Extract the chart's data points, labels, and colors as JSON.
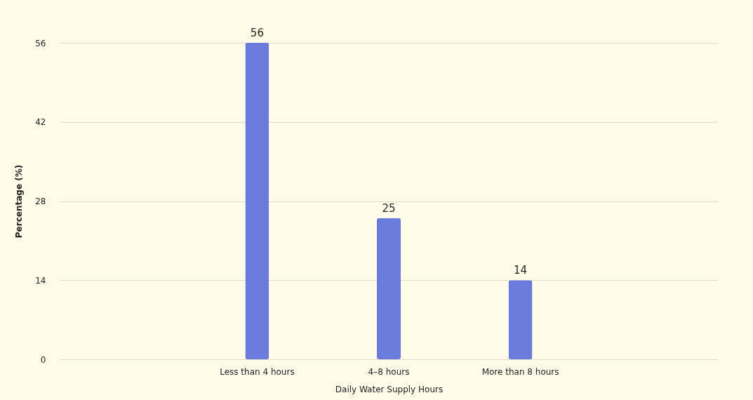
{
  "chart_data": {
    "type": "bar",
    "xlabel": "Daily Water Supply Hours",
    "ylabel": "Percentage (%)",
    "categories": [
      "Less than 4 hours",
      "4–8 hours",
      "More than 8 hours"
    ],
    "values": [
      56,
      25,
      14
    ],
    "color": "#6b7bdc",
    "ylim": [
      0,
      56
    ],
    "yticks": [
      0,
      14,
      28,
      42,
      56
    ],
    "grid": "y",
    "data_labels": true
  }
}
